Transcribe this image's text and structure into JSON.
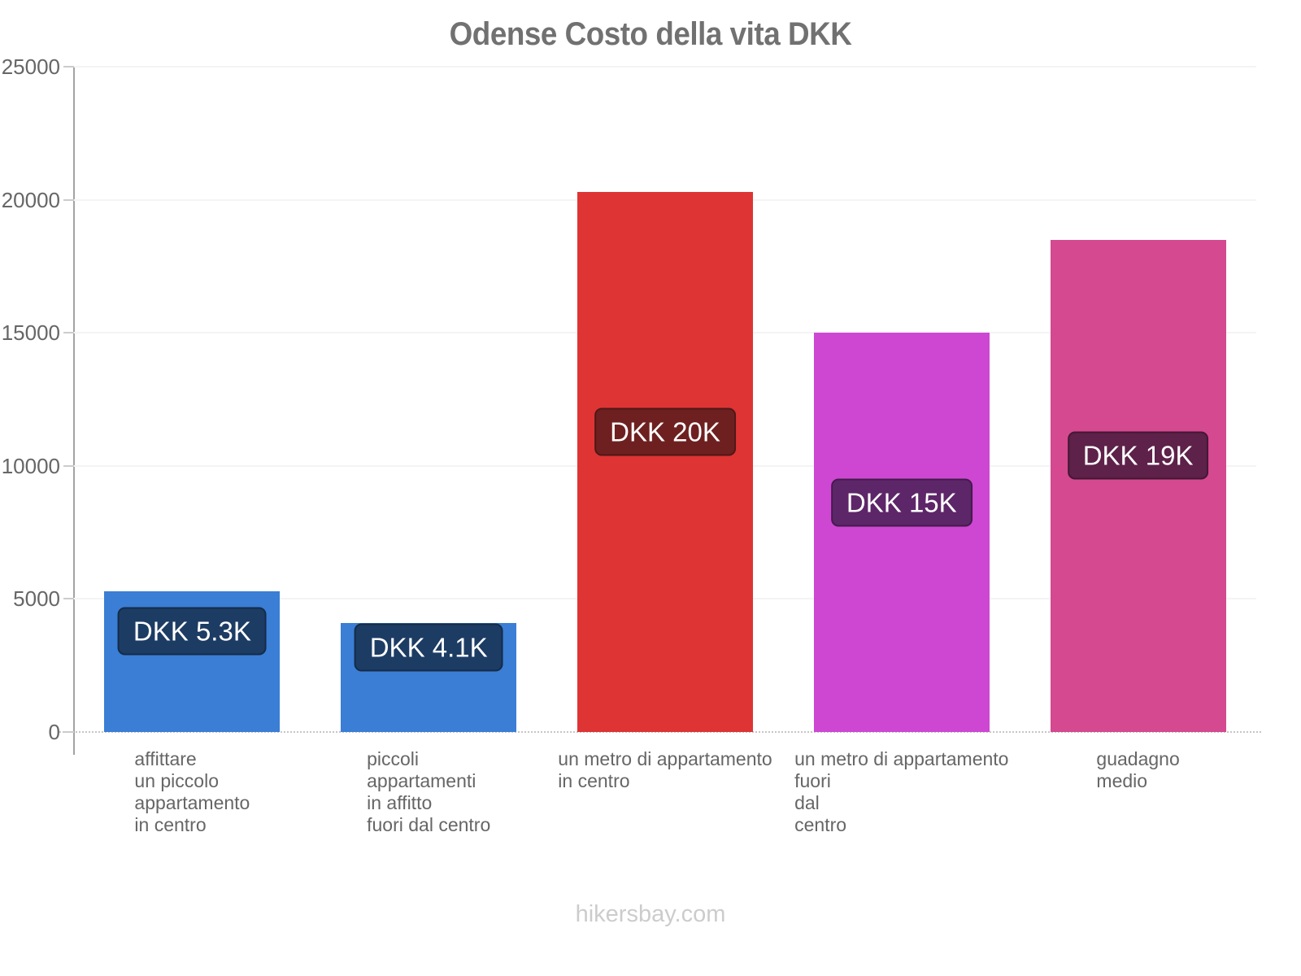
{
  "title": "Odense Costo della vita DKK",
  "watermark": "hikersbay.com",
  "colors": {
    "title_text": "#717171",
    "tick_text": "#666666",
    "category_text": "#666666",
    "watermark_text": "#cccccc",
    "axis_line": "#a3a3a3",
    "gridline": "#f4f4f4",
    "baseline_dotted": "#c6c6c6",
    "badge_text": "#ffffff"
  },
  "chart_data": {
    "type": "bar",
    "title": "Odense Costo della vita DKK",
    "currency": "DKK",
    "categories": [
      "affittare\nun piccolo\nappartamento\nin centro",
      "piccoli\nappartamenti\nin affitto\nfuori dal centro",
      "un metro di appartamento\nin centro",
      "un metro di appartamento\nfuori\ndal\ncentro",
      "guadagno\nmedio"
    ],
    "values": [
      5300,
      4100,
      20300,
      15000,
      18500
    ],
    "value_labels": [
      "DKK 5.3K",
      "DKK 4.1K",
      "DKK 20K",
      "DKK 15K",
      "DKK 19K"
    ],
    "bar_colors": [
      "#3a7ed5",
      "#3a7ed5",
      "#de3434",
      "#ce47d3",
      "#d4498f"
    ],
    "badge_colors": [
      "#1d3c64",
      "#1d3c64",
      "#6e2020",
      "#5d2668",
      "#5e2149"
    ],
    "xlabel": "",
    "ylabel": "",
    "ylim": [
      0,
      25000
    ],
    "yticks": [
      0,
      5000,
      10000,
      15000,
      20000,
      25000
    ],
    "ytick_labels": [
      "0",
      "5000",
      "10000",
      "15000",
      "20000",
      "25000"
    ],
    "grid": true,
    "legend": false
  }
}
